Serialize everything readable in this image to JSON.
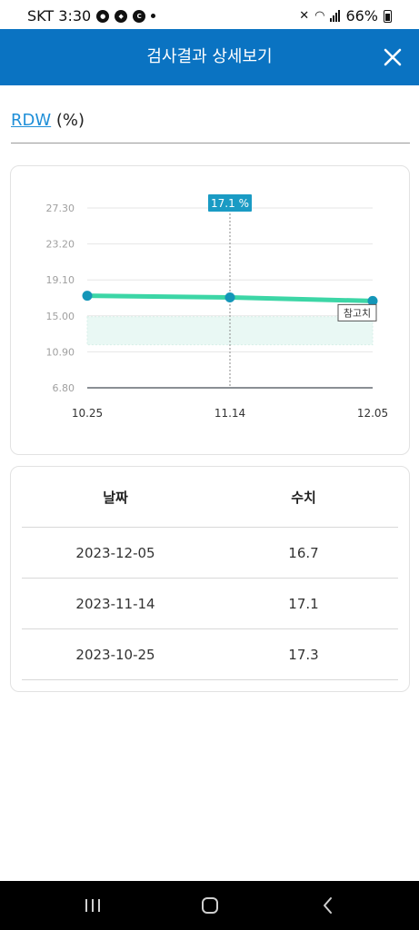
{
  "status_bar": {
    "carrier_time": "SKT 3:30",
    "battery": "66%"
  },
  "header": {
    "title": "검사결과 상세보기"
  },
  "test": {
    "name": "RDW",
    "unit": "(%)"
  },
  "tooltip": {
    "label": "17.1 %"
  },
  "reference_label": "참고치",
  "colors": {
    "header": "#0a73c2",
    "line": "#3cd6a6",
    "point": "#1496b8",
    "tooltip": "#1a9bc4",
    "link": "#1f8fd8"
  },
  "chart_data": {
    "type": "line",
    "categories": [
      "10.25",
      "11.14",
      "12.05"
    ],
    "series": [
      {
        "values": [
          17.3,
          17.1,
          16.7
        ]
      }
    ],
    "ylim": [
      6.8,
      27.3
    ],
    "yticks": [
      "27.30",
      "23.20",
      "19.10",
      "15.00",
      "10.90",
      "6.80"
    ],
    "reference_range": [
      11.7,
      14.9
    ],
    "highlight_index": 1,
    "grid": true
  },
  "table": {
    "headers": [
      "날짜",
      "수치"
    ],
    "rows": [
      {
        "date": "2023-12-05",
        "value": "16.7"
      },
      {
        "date": "2023-11-14",
        "value": "17.1"
      },
      {
        "date": "2023-10-25",
        "value": "17.3"
      }
    ]
  },
  "icons": {
    "close": "close-icon",
    "nav_recent": "recent-apps-icon",
    "nav_home": "home-icon",
    "nav_back": "back-icon"
  }
}
